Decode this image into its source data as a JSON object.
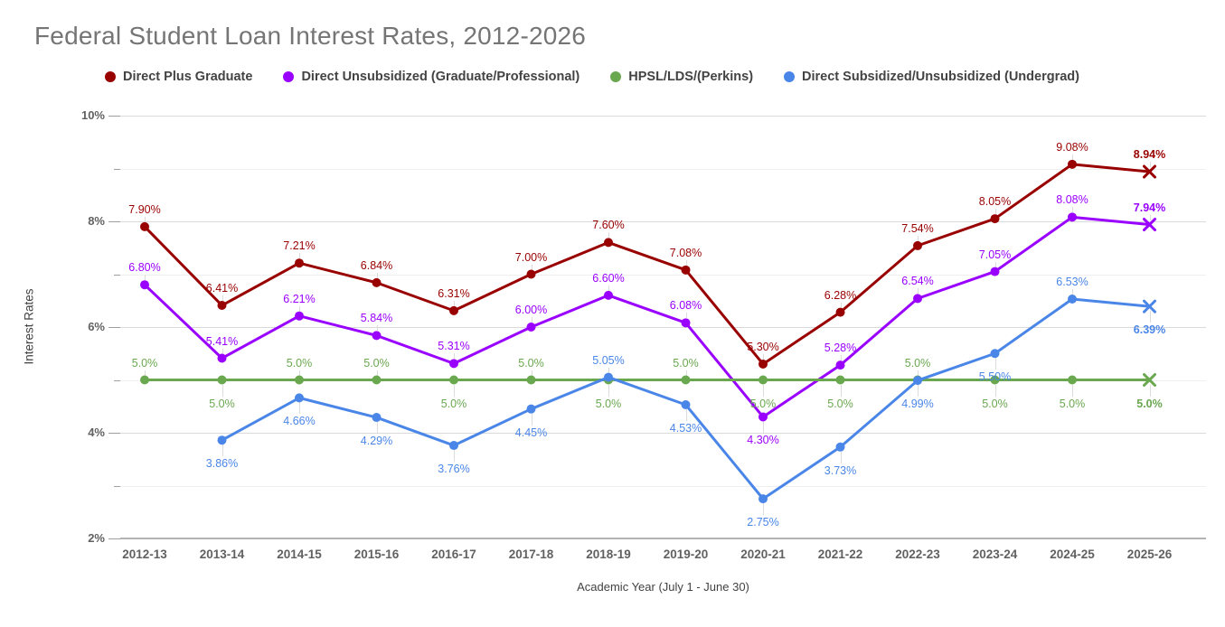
{
  "title": "Federal Student Loan Interest Rates, 2012-2026",
  "legend": [
    {
      "label": "Direct Plus Graduate",
      "color": "#990000"
    },
    {
      "label": "Direct Unsubsidized (Graduate/Professional)",
      "color": "#9900ff"
    },
    {
      "label": "HPSL/LDS/(Perkins)",
      "color": "#6aa84f"
    },
    {
      "label": "Direct Subsidized/Unsubsidized (Undergrad)",
      "color": "#4a86e8"
    }
  ],
  "chart_data": {
    "type": "line",
    "title": "Federal Student Loan Interest Rates, 2012-2026",
    "xlabel": "Academic Year (July 1 - June 30)",
    "ylabel": "Interest Rates",
    "ylim": [
      2,
      10
    ],
    "grid": "horizontal; labeled gridlines at 2%,4%,6%,8%,10%; minor gridlines at 3%,5%,7%,9%",
    "legend_position": "top",
    "y_ticks": [
      {
        "value": 2,
        "label": "2%"
      },
      {
        "value": 4,
        "label": "4%"
      },
      {
        "value": 6,
        "label": "6%"
      },
      {
        "value": 8,
        "label": "8%"
      },
      {
        "value": 10,
        "label": "10%"
      }
    ],
    "y_minor_ticks": [
      3,
      5,
      7,
      9
    ],
    "categories": [
      "2012-13",
      "2013-14",
      "2014-15",
      "2015-16",
      "2016-17",
      "2017-18",
      "2018-19",
      "2019-20",
      "2020-21",
      "2021-22",
      "2022-23",
      "2023-24",
      "2024-25",
      "2025-26"
    ],
    "series": [
      {
        "name": "Direct Plus Graduate",
        "color": "#990000",
        "values": [
          7.9,
          6.41,
          7.21,
          6.84,
          6.31,
          7.0,
          7.6,
          7.08,
          5.3,
          6.28,
          7.54,
          8.05,
          9.08,
          8.94
        ],
        "labels": [
          "7.90%",
          "6.41%",
          "7.21%",
          "6.84%",
          "6.31%",
          "7.00%",
          "7.60%",
          "7.08%",
          "5.30%",
          "6.28%",
          "7.54%",
          "8.05%",
          "9.08%",
          "8.94%"
        ],
        "label_side": [
          "above",
          "above",
          "above",
          "above",
          "above",
          "above",
          "above",
          "above",
          "above",
          "above",
          "above",
          "above",
          "above",
          "above"
        ],
        "last_marker": "x"
      },
      {
        "name": "Direct Unsubsidized (Graduate/Professional)",
        "color": "#9900ff",
        "values": [
          6.8,
          5.41,
          6.21,
          5.84,
          5.31,
          6.0,
          6.6,
          6.08,
          4.3,
          5.28,
          6.54,
          7.05,
          8.08,
          7.94
        ],
        "labels": [
          "6.80%",
          "5.41%",
          "6.21%",
          "5.84%",
          "5.31%",
          "6.00%",
          "6.60%",
          "6.08%",
          "4.30%",
          "5.28%",
          "6.54%",
          "7.05%",
          "8.08%",
          "7.94%"
        ],
        "label_side": [
          "above",
          "above",
          "above",
          "above",
          "above",
          "above",
          "above",
          "above",
          "below",
          "above",
          "above",
          "above",
          "above",
          "above"
        ],
        "last_marker": "x"
      },
      {
        "name": "HPSL/LDS/(Perkins)",
        "color": "#6aa84f",
        "values": [
          5.0,
          5.0,
          5.0,
          5.0,
          5.0,
          5.0,
          5.0,
          5.0,
          5.0,
          5.0,
          5.0,
          5.0,
          5.0,
          5.0
        ],
        "labels": [
          "5.0%",
          "5.0%",
          "5.0%",
          "5.0%",
          "5.0%",
          "5.0%",
          "5.0%",
          "5.0%",
          "5.0%",
          "5.0%",
          "5.0%",
          "5.0%",
          "5.0%",
          "5.0%"
        ],
        "label_side": [
          "above",
          "below",
          "above",
          "above",
          "below",
          "above",
          "below",
          "above",
          "below",
          "below",
          "above",
          "below",
          "below",
          "below"
        ],
        "last_marker": "x"
      },
      {
        "name": "Direct Subsidized/Unsubsidized (Undergrad)",
        "color": "#4a86e8",
        "values": [
          null,
          3.86,
          4.66,
          4.29,
          3.76,
          4.45,
          5.05,
          4.53,
          2.75,
          3.73,
          4.99,
          5.5,
          6.53,
          6.39
        ],
        "labels": [
          null,
          "3.86%",
          "4.66%",
          "4.29%",
          "3.76%",
          "4.45%",
          "5.05%",
          "4.53%",
          "2.75%",
          "3.73%",
          "4.99%",
          "5.50%",
          "6.53%",
          "6.39%"
        ],
        "label_side": [
          null,
          "below",
          "below",
          "below",
          "below",
          "below",
          "above",
          "below",
          "below",
          "below",
          "below",
          "below",
          "above",
          "below"
        ],
        "last_marker": "x"
      }
    ]
  }
}
